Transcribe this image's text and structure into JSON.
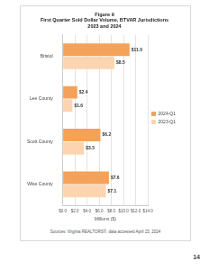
{
  "chart_data": {
    "type": "bar",
    "orientation": "horizontal",
    "title": [
      "Figure 9",
      "First Quarter Sold Dollar Volume, BTVAR Jurisdictions"
    ],
    "subtitle": "2023 and 2024",
    "categories": [
      "Bristol",
      "Lee County",
      "Scott County",
      "Wise County"
    ],
    "series": [
      {
        "name": "2024-Q1",
        "color": "#f4a259",
        "values": [
          11.0,
          2.4,
          6.2,
          7.6
        ],
        "value_labels": [
          "$11.0",
          "$2.4",
          "$6.2",
          "$7.6"
        ]
      },
      {
        "name": "2023-Q1",
        "color": "#fcd5b0",
        "values": [
          8.5,
          1.6,
          3.5,
          7.1
        ],
        "value_labels": [
          "$8.5",
          "$1.6",
          "$3.5",
          "$7.1"
        ]
      }
    ],
    "x_label": "Millions ($)",
    "xlim": [
      0,
      14
    ],
    "xticks": [
      {
        "value": 0,
        "label": "$0.0"
      },
      {
        "value": 2,
        "label": "$2.0"
      },
      {
        "value": 4,
        "label": "$4.0"
      },
      {
        "value": 6,
        "label": "$6.0"
      },
      {
        "value": 8,
        "label": "$8.0"
      },
      {
        "value": 10,
        "label": "$10.0"
      },
      {
        "value": 12,
        "label": "$12.0"
      },
      {
        "value": 14,
        "label": "$14.0"
      }
    ],
    "grid": true,
    "legend": "right",
    "data_labels": true,
    "annotations": [
      "Sources: Virginia REALTORS®, data accessed April 15, 2024"
    ]
  },
  "page": {
    "number": "14"
  }
}
